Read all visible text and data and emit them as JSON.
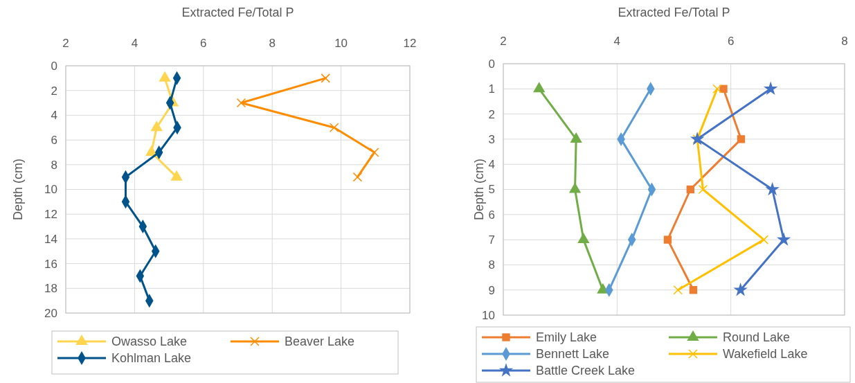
{
  "chart_data": [
    {
      "type": "line",
      "xlabel": "Extracted Fe/Total P",
      "ylabel": "Depth (cm)",
      "xlim": [
        2,
        12
      ],
      "xticks": [
        2,
        4,
        6,
        8,
        10,
        12
      ],
      "ylim": [
        20,
        0
      ],
      "yticks": [
        0,
        2,
        4,
        6,
        8,
        10,
        12,
        14,
        16,
        18,
        20
      ],
      "grid": true,
      "legend": "bottom",
      "line_style": "solid",
      "series": [
        {
          "name": "Owasso Lake",
          "color": "#ffd54f",
          "marker": "triangle",
          "x": [
            4.88,
            5.11,
            4.64,
            4.49,
            5.22
          ],
          "values": [
            1,
            3,
            5,
            7,
            9
          ]
        },
        {
          "name": "Beaver Lake",
          "color": "#ff8c00",
          "marker": "cross",
          "x": [
            9.55,
            7.1,
            9.8,
            10.97,
            10.48
          ],
          "values": [
            1,
            3,
            5,
            7,
            9
          ]
        },
        {
          "name": "Kohlman Lake",
          "color": "#00538a",
          "marker": "diamond",
          "x": [
            5.23,
            5.03,
            5.24,
            4.71,
            3.74,
            3.74,
            4.24,
            4.61,
            4.16,
            4.43
          ],
          "values": [
            1,
            3,
            5,
            7,
            9,
            11,
            13,
            15,
            17,
            19
          ]
        }
      ]
    },
    {
      "type": "line",
      "xlabel": "Extracted Fe/Total P",
      "ylabel": "Depth (cm)",
      "xlim": [
        2,
        8
      ],
      "xticks": [
        2,
        4,
        6,
        8
      ],
      "ylim": [
        10,
        0
      ],
      "yticks": [
        0,
        1,
        2,
        3,
        4,
        5,
        6,
        7,
        8,
        9,
        10
      ],
      "grid": true,
      "legend": "bottom",
      "line_style": "solid",
      "series": [
        {
          "name": "Emily Lake",
          "color": "#ed7d31",
          "marker": "square",
          "x": [
            5.87,
            6.18,
            5.29,
            4.89,
            5.34
          ],
          "values": [
            1,
            3,
            5,
            7,
            9
          ]
        },
        {
          "name": "Round Lake",
          "color": "#70ad47",
          "marker": "triangle",
          "x": [
            2.63,
            3.28,
            3.26,
            3.41,
            3.75
          ],
          "values": [
            1,
            3,
            5,
            7,
            9
          ]
        },
        {
          "name": "Bennett Lake",
          "color": "#5b9bd5",
          "marker": "diamond",
          "x": [
            4.59,
            4.07,
            4.61,
            4.26,
            3.86
          ],
          "values": [
            1,
            3,
            5,
            7,
            9
          ]
        },
        {
          "name": "Wakefield Lake",
          "color": "#ffc000",
          "marker": "cross",
          "x": [
            5.76,
            5.41,
            5.51,
            6.58,
            5.07
          ],
          "values": [
            1,
            3,
            5,
            7,
            9
          ]
        },
        {
          "name": "Battle Creek Lake",
          "color": "#4472c4",
          "marker": "star",
          "x": [
            6.7,
            5.41,
            6.73,
            6.93,
            6.17
          ],
          "values": [
            1,
            3,
            5,
            7,
            9
          ]
        }
      ]
    }
  ]
}
